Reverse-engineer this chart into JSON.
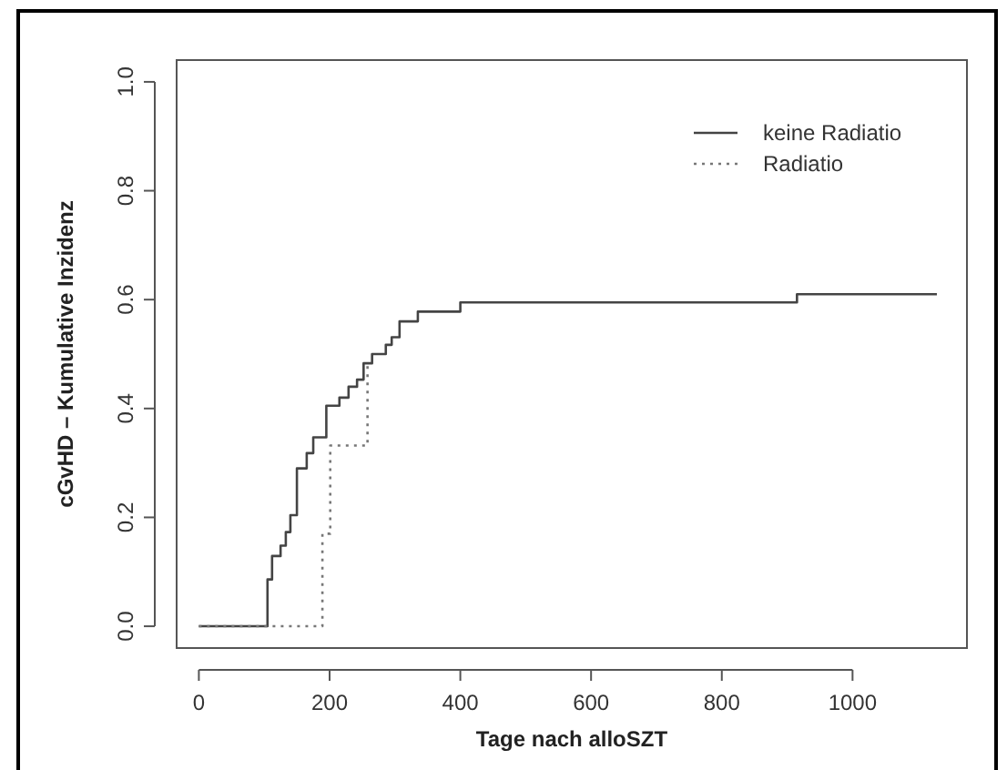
{
  "chart_data": {
    "type": "step",
    "xlabel": "Tage nach alloSZT",
    "ylabel": "cGvHD – Kumulative Inzidenz",
    "xlim": [
      -34,
      1175
    ],
    "ylim": [
      -0.04,
      1.04
    ],
    "xticks": [
      0,
      200,
      400,
      600,
      800,
      1000
    ],
    "yticks": [
      {
        "value": 0,
        "label": "0.0"
      },
      {
        "value": 0.2,
        "label": "0.2"
      },
      {
        "value": 0.4,
        "label": "0.4"
      },
      {
        "value": 0.6,
        "label": "0.6"
      },
      {
        "value": 0.8,
        "label": "0.8"
      },
      {
        "value": 1,
        "label": "1.0"
      }
    ],
    "grid": false,
    "legend": "top right",
    "series": [
      {
        "name": "keine Radiatio",
        "color": "#444444",
        "line_style": "solid",
        "x": [
          0,
          105,
          112,
          125,
          133,
          140,
          150,
          165,
          175,
          195,
          215,
          229,
          242,
          252,
          265,
          286,
          295,
          307,
          335,
          400,
          915,
          1129
        ],
        "values": [
          0,
          0.086,
          0.129,
          0.148,
          0.173,
          0.204,
          0.29,
          0.318,
          0.347,
          0.405,
          0.42,
          0.44,
          0.453,
          0.483,
          0.5,
          0.517,
          0.531,
          0.56,
          0.578,
          0.595,
          0.61,
          0.61
        ]
      },
      {
        "name": "Radiatio",
        "color": "#777777",
        "line_style": "dotted",
        "x": [
          0,
          189,
          201,
          258
        ],
        "values": [
          0,
          0.17,
          0.332,
          0.483
        ]
      }
    ]
  }
}
